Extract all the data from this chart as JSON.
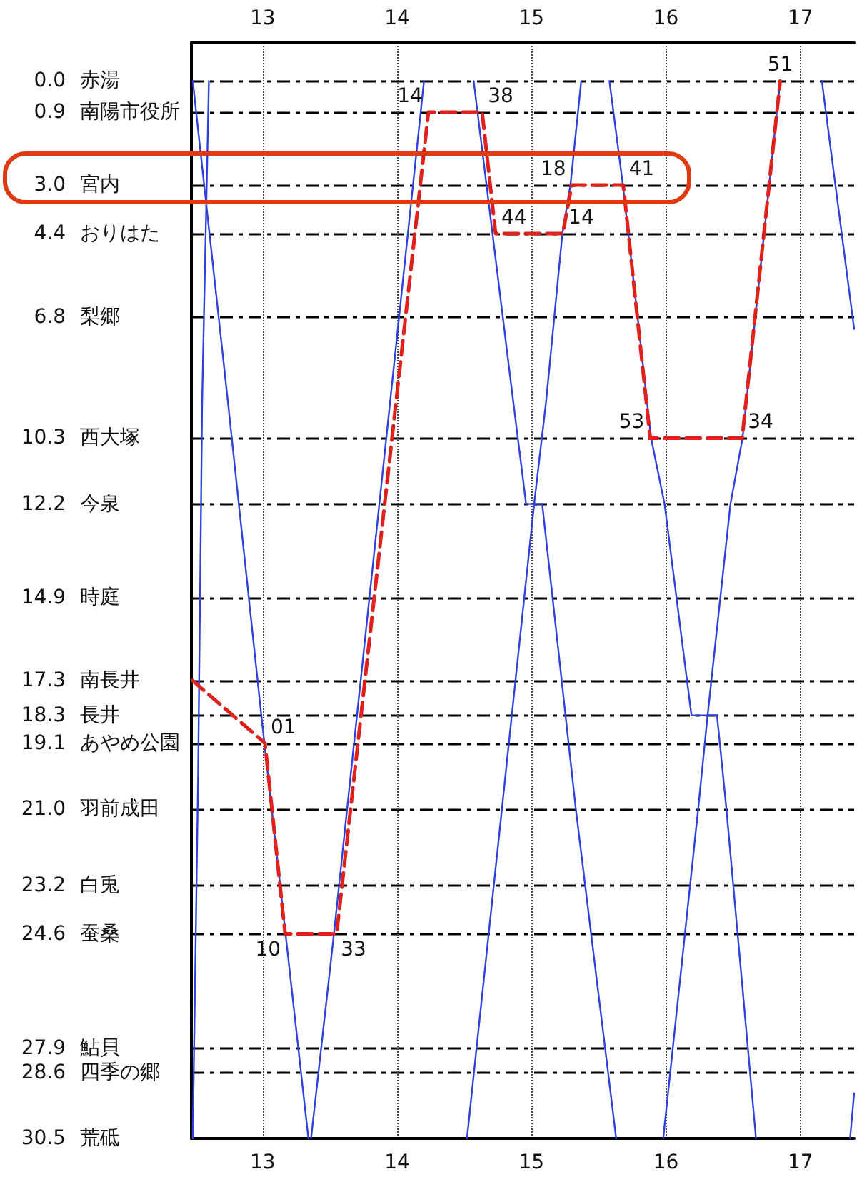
{
  "chart_data": {
    "type": "line",
    "marker": "none",
    "grid": true,
    "xlim": [
      12.47,
      17.4
    ],
    "xticks": [
      13,
      14,
      15,
      16,
      17
    ],
    "x2lim": [
      12.47,
      17.4
    ],
    "x2ticks": [
      13,
      14,
      15,
      16,
      17
    ],
    "ylim": [
      30.5,
      -1.1
    ],
    "yticks": [
      {
        "value": 0,
        "label": "0.0"
      },
      {
        "value": 0.9,
        "label": "0.9"
      },
      {
        "value": 3.0,
        "label": "3.0"
      },
      {
        "value": 4.4,
        "label": "4.4"
      },
      {
        "value": 6.8,
        "label": "6.8"
      },
      {
        "value": 10.3,
        "label": "10.3"
      },
      {
        "value": 12.2,
        "label": "12.2"
      },
      {
        "value": 14.9,
        "label": "14.9"
      },
      {
        "value": 17.3,
        "label": "17.3"
      },
      {
        "value": 18.3,
        "label": "18.3"
      },
      {
        "value": 19.1,
        "label": "19.1"
      },
      {
        "value": 21.0,
        "label": "21.0"
      },
      {
        "value": 23.2,
        "label": "23.2"
      },
      {
        "value": 24.6,
        "label": "24.6"
      },
      {
        "value": 27.9,
        "label": "27.9"
      },
      {
        "value": 28.6,
        "label": "28.6"
      },
      {
        "value": 30.5,
        "label": "30.5"
      }
    ],
    "series": [
      {
        "color": "#3040e0",
        "line_style": "solid",
        "x": [
          12.48,
          12.74,
          12.99,
          13.17,
          13.34
        ],
        "values": [
          0,
          9.2,
          18.3,
          24.6,
          30.5
        ]
      },
      {
        "color": "#3040e0",
        "line_style": "solid",
        "x": [
          12.48,
          12.52,
          12.55,
          12.6
        ],
        "values": [
          30.5,
          20.0,
          9.2,
          0
        ]
      },
      {
        "color": "#3040e0",
        "line_style": "solid",
        "x": [
          13.36,
          13.53,
          14.2
        ],
        "values": [
          30.5,
          24.6,
          0
        ]
      },
      {
        "color": "#3040e0",
        "line_style": "solid",
        "x": [
          14.57,
          14.71,
          14.85,
          14.96,
          15.08,
          15.33,
          15.63
        ],
        "values": [
          0,
          4.4,
          8.8,
          12.2,
          12.2,
          21.0,
          30.5
        ]
      },
      {
        "color": "#3040e0",
        "line_style": "solid",
        "x": [
          14.52,
          14.78,
          15.02,
          15.11,
          15.23,
          15.29,
          15.37
        ],
        "values": [
          30.5,
          21.0,
          12.2,
          9.2,
          4.4,
          3.0,
          0
        ]
      },
      {
        "color": "#3040e0",
        "line_style": "solid",
        "x": [
          15.58,
          15.68,
          15.89,
          15.99,
          16.19,
          16.38,
          16.45,
          16.67
        ],
        "values": [
          0,
          3.0,
          10.3,
          12.2,
          18.3,
          18.3,
          21.0,
          30.5
        ]
      },
      {
        "color": "#3040e0",
        "line_style": "solid",
        "x": [
          15.98,
          16.24,
          16.31,
          16.48,
          16.57,
          16.85
        ],
        "values": [
          30.5,
          21.0,
          18.3,
          12.2,
          10.3,
          0
        ]
      },
      {
        "color": "#3040e0",
        "line_style": "solid",
        "x": [
          17.16,
          17.4
        ],
        "values": [
          0,
          7.15
        ]
      },
      {
        "color": "#3040e0",
        "line_style": "solid",
        "x": [
          17.37,
          17.4
        ],
        "values": [
          30.5,
          29.2
        ]
      },
      {
        "color": "#e0201b",
        "line_style": "dashed",
        "x": [
          12.48,
          13.017,
          13.167,
          13.55,
          14.233,
          14.633,
          14.733,
          15.233,
          15.3,
          15.683,
          15.883,
          16.567,
          16.85
        ],
        "values": [
          17.3,
          19.1,
          24.6,
          24.6,
          0.9,
          0.9,
          4.4,
          4.4,
          3.0,
          3.0,
          10.3,
          10.3,
          0
        ]
      }
    ],
    "annotations": [
      {
        "text": "01",
        "x": 13.017,
        "y": 19.1
      },
      {
        "text": "10",
        "x": 13.167,
        "y": 24.6
      },
      {
        "text": "33",
        "x": 13.55,
        "y": 24.6
      },
      {
        "text": "14",
        "x": 14.233,
        "y": 0.9
      },
      {
        "text": "38",
        "x": 14.633,
        "y": 0.9
      },
      {
        "text": "44",
        "x": 14.733,
        "y": 4.4
      },
      {
        "text": "14",
        "x": 15.233,
        "y": 4.4
      },
      {
        "text": "18",
        "x": 15.3,
        "y": 3.0
      },
      {
        "text": "41",
        "x": 15.683,
        "y": 3.0
      },
      {
        "text": "53",
        "x": 15.883,
        "y": 10.3
      },
      {
        "text": "34",
        "x": 16.567,
        "y": 10.3
      },
      {
        "text": "51",
        "x": 16.85,
        "y": 0
      },
      "赤湯",
      "南陽市役所",
      "宮内",
      "おりはた",
      "梨郷",
      "西大塚",
      "今泉",
      "時庭",
      "南長井",
      "長井",
      "あやめ公園",
      "羽前成田",
      "白兎",
      "蚕桑",
      "鮎貝",
      "四季の郷",
      "荒砥"
    ]
  }
}
